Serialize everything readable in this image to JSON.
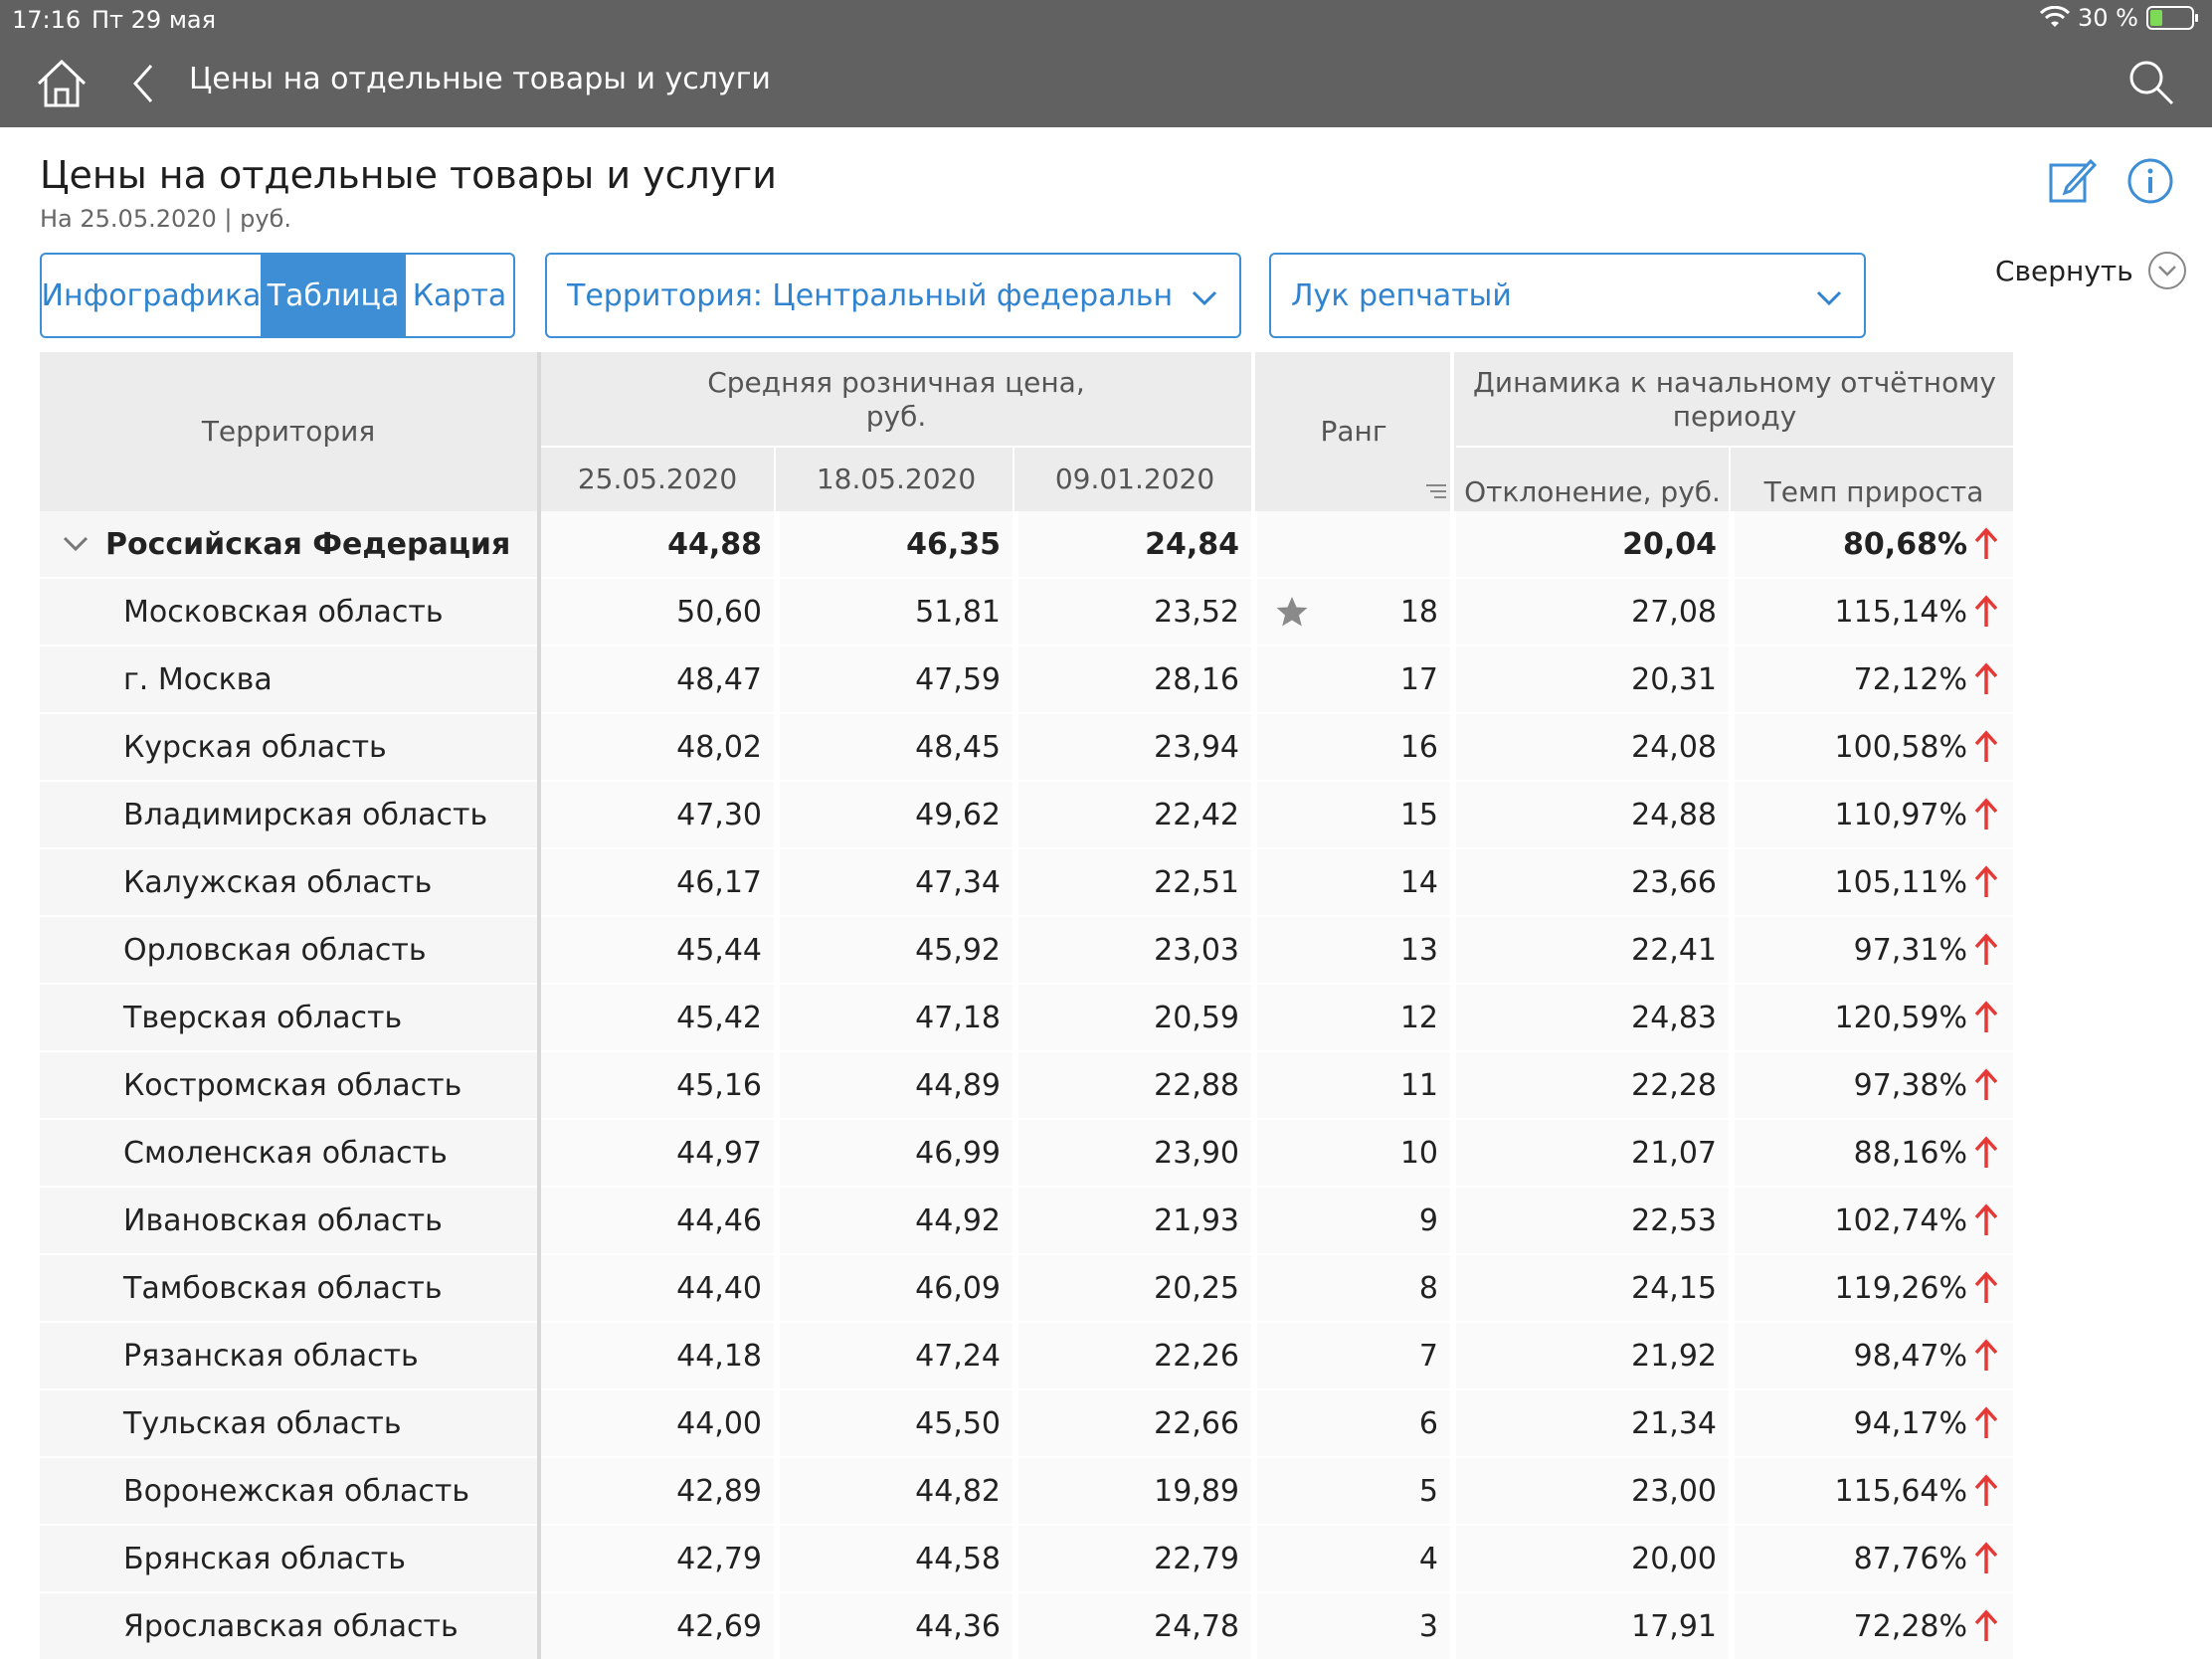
{
  "status_bar": {
    "time": "17:16",
    "date": "Пт 29 мая",
    "battery": "30 %",
    "battery_level": 0.3,
    "battery_color": "#7ed957"
  },
  "nav": {
    "title": "Цены на отдельные товары и услуги",
    "home_icon": "home-icon",
    "back_icon": "chevron-left-icon",
    "search_icon": "search-icon",
    "bg_color": "#616161"
  },
  "page": {
    "title": "Цены на отдельные товары и услуги",
    "subtitle": "На 25.05.2020 | руб.",
    "edit_icon": "edit-icon",
    "info_icon": "info-icon"
  },
  "tabs": [
    {
      "label": "Инфографика",
      "active": false
    },
    {
      "label": "Таблица",
      "active": true
    },
    {
      "label": "Карта",
      "active": false
    }
  ],
  "filters": {
    "territory": "Территория: Центральный федеральный ок",
    "product": "Лук репчатый"
  },
  "collapse_label": "Свернуть",
  "accent_color": "#3e8ed6",
  "table": {
    "headers": {
      "territory": "Территория",
      "avg_price": "Средняя розничная цена,\nруб.",
      "dates": [
        "25.05.2020",
        "18.05.2020",
        "09.01.2020"
      ],
      "rank": "Ранг",
      "dynamics": "Динамика к начальному отчётному\nпериоду",
      "deviation": "Отклонение, руб.",
      "growth": "Темп прироста"
    },
    "rows": [
      {
        "name": "Российская Федерация",
        "v1": "44,88",
        "v2": "46,35",
        "v3": "24,84",
        "rank": "",
        "dev": "20,04",
        "growth": "80,68%",
        "top": true
      },
      {
        "name": "Московская область",
        "v1": "50,60",
        "v2": "51,81",
        "v3": "23,52",
        "rank": "18",
        "dev": "27,08",
        "growth": "115,14%",
        "star": true
      },
      {
        "name": "г. Москва",
        "v1": "48,47",
        "v2": "47,59",
        "v3": "28,16",
        "rank": "17",
        "dev": "20,31",
        "growth": "72,12%"
      },
      {
        "name": "Курская область",
        "v1": "48,02",
        "v2": "48,45",
        "v3": "23,94",
        "rank": "16",
        "dev": "24,08",
        "growth": "100,58%"
      },
      {
        "name": "Владимирская область",
        "v1": "47,30",
        "v2": "49,62",
        "v3": "22,42",
        "rank": "15",
        "dev": "24,88",
        "growth": "110,97%"
      },
      {
        "name": "Калужская область",
        "v1": "46,17",
        "v2": "47,34",
        "v3": "22,51",
        "rank": "14",
        "dev": "23,66",
        "growth": "105,11%"
      },
      {
        "name": "Орловская область",
        "v1": "45,44",
        "v2": "45,92",
        "v3": "23,03",
        "rank": "13",
        "dev": "22,41",
        "growth": "97,31%"
      },
      {
        "name": "Тверская область",
        "v1": "45,42",
        "v2": "47,18",
        "v3": "20,59",
        "rank": "12",
        "dev": "24,83",
        "growth": "120,59%"
      },
      {
        "name": "Костромская область",
        "v1": "45,16",
        "v2": "44,89",
        "v3": "22,88",
        "rank": "11",
        "dev": "22,28",
        "growth": "97,38%"
      },
      {
        "name": "Смоленская область",
        "v1": "44,97",
        "v2": "46,99",
        "v3": "23,90",
        "rank": "10",
        "dev": "21,07",
        "growth": "88,16%"
      },
      {
        "name": "Ивановская область",
        "v1": "44,46",
        "v2": "44,92",
        "v3": "21,93",
        "rank": "9",
        "dev": "22,53",
        "growth": "102,74%"
      },
      {
        "name": "Тамбовская область",
        "v1": "44,40",
        "v2": "46,09",
        "v3": "20,25",
        "rank": "8",
        "dev": "24,15",
        "growth": "119,26%"
      },
      {
        "name": "Рязанская область",
        "v1": "44,18",
        "v2": "47,24",
        "v3": "22,26",
        "rank": "7",
        "dev": "21,92",
        "growth": "98,47%"
      },
      {
        "name": "Тульская область",
        "v1": "44,00",
        "v2": "45,50",
        "v3": "22,66",
        "rank": "6",
        "dev": "21,34",
        "growth": "94,17%"
      },
      {
        "name": "Воронежская область",
        "v1": "42,89",
        "v2": "44,82",
        "v3": "19,89",
        "rank": "5",
        "dev": "23,00",
        "growth": "115,64%"
      },
      {
        "name": "Брянская область",
        "v1": "42,79",
        "v2": "44,58",
        "v3": "22,79",
        "rank": "4",
        "dev": "20,00",
        "growth": "87,76%"
      },
      {
        "name": "Ярославская область",
        "v1": "42,69",
        "v2": "44,36",
        "v3": "24,78",
        "rank": "3",
        "dev": "17,91",
        "growth": "72,28%"
      }
    ],
    "arrow_color": "#e53935",
    "arrow_icon": "arrow-up-icon"
  }
}
